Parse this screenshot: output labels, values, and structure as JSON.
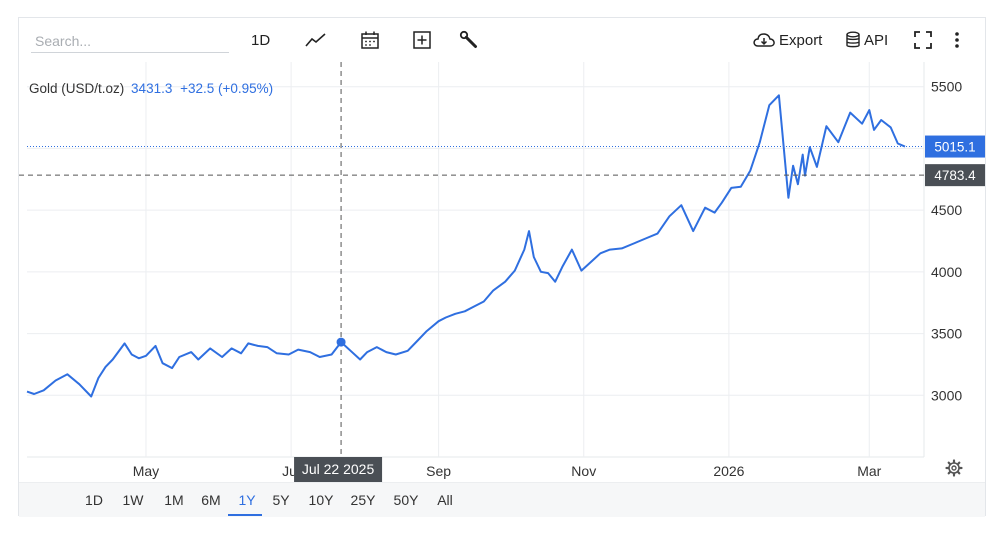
{
  "toolbar": {
    "search_placeholder": "Search...",
    "interval_label": "1D",
    "export_label": "Export",
    "api_label": "API",
    "icons": [
      "chart-type-icon",
      "calendar-icon",
      "compare-plus-icon",
      "wrench-icon",
      "cloud-download-icon",
      "database-icon",
      "fullscreen-icon",
      "more-vertical-icon"
    ]
  },
  "legend": {
    "symbol": "Gold (USD/t.oz)",
    "price": "3431.3",
    "change": "+32.5 (+0.95%)"
  },
  "crosshair": {
    "date_label": "Jul 22 2025",
    "price_label": "4783.4"
  },
  "last_price_label": "5015.1",
  "ranges": [
    "1D",
    "1W",
    "1M",
    "6M",
    "1Y",
    "5Y",
    "10Y",
    "25Y",
    "50Y",
    "All"
  ],
  "active_range": "1Y",
  "colors": {
    "line": "#2f6fe0",
    "last_price_badge": "#2f6fe0",
    "crosshair_badge": "#4a4f55"
  },
  "chart_data": {
    "type": "line",
    "title": "",
    "xlabel": "",
    "ylabel": "",
    "xlim": [
      "2025-03-12",
      "2026-03-24"
    ],
    "ylim": [
      2500,
      5700
    ],
    "yticks": [
      3000,
      3500,
      4000,
      4500,
      5000,
      5500
    ],
    "ytick_labels": [
      "3000",
      "3500",
      "4000",
      "4500",
      "",
      "5500"
    ],
    "xticks": [
      {
        "date": "2025-05-01",
        "label": "May"
      },
      {
        "date": "2025-07-01",
        "label": "Jul"
      },
      {
        "date": "2025-09-01",
        "label": "Sep"
      },
      {
        "date": "2025-11-01",
        "label": "Nov"
      },
      {
        "date": "2026-01-01",
        "label": "2026"
      },
      {
        "date": "2026-03-01",
        "label": "Mar"
      }
    ],
    "grid": true,
    "crosshair_date": "2025-07-22",
    "crosshair_value": 4783.4,
    "last_value": 5015.1,
    "series": [
      {
        "dates": [
          "2025-03-12",
          "2025-03-15",
          "2025-03-19",
          "2025-03-24",
          "2025-03-29",
          "2025-04-03",
          "2025-04-08",
          "2025-04-11",
          "2025-04-14",
          "2025-04-17",
          "2025-04-22",
          "2025-04-25",
          "2025-04-28",
          "2025-05-01",
          "2025-05-05",
          "2025-05-08",
          "2025-05-12",
          "2025-05-15",
          "2025-05-20",
          "2025-05-23",
          "2025-05-28",
          "2025-06-02",
          "2025-06-06",
          "2025-06-10",
          "2025-06-13",
          "2025-06-17",
          "2025-06-21",
          "2025-06-25",
          "2025-06-30",
          "2025-07-04",
          "2025-07-09",
          "2025-07-13",
          "2025-07-18",
          "2025-07-22",
          "2025-07-26",
          "2025-07-30",
          "2025-08-02",
          "2025-08-06",
          "2025-08-10",
          "2025-08-14",
          "2025-08-19",
          "2025-08-23",
          "2025-08-27",
          "2025-09-01",
          "2025-09-04",
          "2025-09-08",
          "2025-09-12",
          "2025-09-16",
          "2025-09-20",
          "2025-09-24",
          "2025-09-29",
          "2025-10-03",
          "2025-10-07",
          "2025-10-09",
          "2025-10-11",
          "2025-10-14",
          "2025-10-17",
          "2025-10-20",
          "2025-10-23",
          "2025-10-27",
          "2025-10-31",
          "2025-11-04",
          "2025-11-08",
          "2025-11-12",
          "2025-11-17",
          "2025-11-22",
          "2025-11-27",
          "2025-12-02",
          "2025-12-07",
          "2025-12-12",
          "2025-12-17",
          "2025-12-22",
          "2025-12-26",
          "2025-12-29",
          "2026-01-02",
          "2026-01-06",
          "2026-01-10",
          "2026-01-14",
          "2026-01-18",
          "2026-01-22",
          "2026-01-26",
          "2026-01-28",
          "2026-01-30",
          "2026-02-01",
          "2026-02-02",
          "2026-02-04",
          "2026-02-07",
          "2026-02-11",
          "2026-02-16",
          "2026-02-21",
          "2026-02-26",
          "2026-03-01",
          "2026-03-03",
          "2026-03-06",
          "2026-03-10",
          "2026-03-13",
          "2026-03-16"
        ],
        "values": [
          3030,
          3010,
          3040,
          3120,
          3170,
          3090,
          2990,
          3140,
          3230,
          3290,
          3420,
          3330,
          3300,
          3320,
          3400,
          3260,
          3220,
          3310,
          3350,
          3290,
          3380,
          3310,
          3380,
          3340,
          3420,
          3400,
          3390,
          3340,
          3330,
          3370,
          3350,
          3310,
          3330,
          3431,
          3360,
          3290,
          3350,
          3390,
          3350,
          3330,
          3360,
          3440,
          3520,
          3600,
          3630,
          3660,
          3680,
          3720,
          3760,
          3850,
          3920,
          4010,
          4180,
          4330,
          4120,
          4000,
          3990,
          3920,
          4040,
          4180,
          4010,
          4080,
          4150,
          4180,
          4190,
          4230,
          4270,
          4310,
          4450,
          4540,
          4330,
          4520,
          4480,
          4560,
          4680,
          4690,
          4820,
          5050,
          5350,
          5430,
          4600,
          4860,
          4710,
          4950,
          4780,
          5010,
          4850,
          5180,
          5050,
          5290,
          5200,
          5310,
          5150,
          5230,
          5170,
          5040,
          5015
        ]
      }
    ]
  }
}
